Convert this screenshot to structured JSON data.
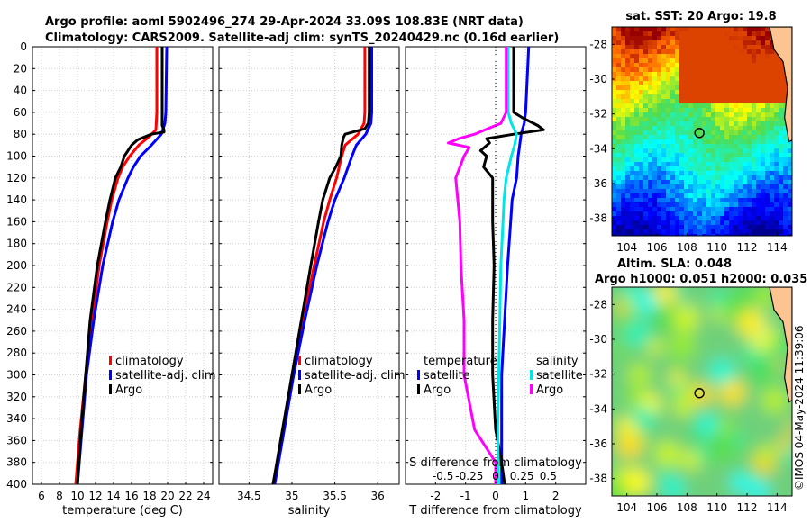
{
  "header": {
    "line1": "Argo profile: aoml 5902496_274 29-Apr-2024 33.09S 108.83E (NRT data)",
    "line2": "Climatology: CARS2009. Satellite-adj clim: synTS_20240429.nc (0.16d earlier)"
  },
  "timestamp": "©IMOS 04-May-2024 11:39:06",
  "depth_ticks": [
    "0",
    "20",
    "40",
    "60",
    "80",
    "100",
    "120",
    "140",
    "160",
    "180",
    "200",
    "220",
    "240",
    "260",
    "280",
    "300",
    "320",
    "340",
    "360",
    "380",
    "400"
  ],
  "colors": {
    "climatology": "#ff0000",
    "satellite": "#0000ff",
    "argo": "#000000",
    "t_sat": "#0000ff",
    "s_sat": "#00e5e5",
    "s_argo": "#ff00ff",
    "t_argo": "#000000"
  },
  "chart_data": [
    {
      "type": "line",
      "name": "temperature-profile",
      "xlabel": "temperature (deg C)",
      "ylabel": "",
      "xlim": [
        5,
        25
      ],
      "ylim": [
        400,
        0
      ],
      "xticks": [
        "6",
        "8",
        "10",
        "12",
        "14",
        "16",
        "18",
        "20",
        "22",
        "24"
      ],
      "xtick_values": [
        6,
        8,
        10,
        12,
        14,
        16,
        18,
        20,
        22,
        24
      ],
      "legend": [
        "climatology",
        "satellite-adj. clim",
        "Argo"
      ],
      "series": [
        {
          "name": "climatology",
          "depth": [
            0,
            60,
            76,
            82,
            90,
            100,
            110,
            120,
            140,
            160,
            200,
            250,
            300,
            350,
            400
          ],
          "values": [
            18.8,
            18.8,
            18.7,
            18.0,
            16.8,
            15.8,
            15.0,
            14.5,
            13.8,
            13.3,
            12.4,
            11.6,
            10.9,
            10.3,
            9.8
          ]
        },
        {
          "name": "satellite-adj. clim",
          "depth": [
            0,
            60,
            70,
            80,
            90,
            100,
            110,
            120,
            140,
            160,
            200,
            250,
            300,
            350,
            400
          ],
          "values": [
            19.9,
            19.8,
            19.7,
            19.3,
            18.2,
            17.0,
            16.2,
            15.6,
            14.6,
            13.9,
            12.8,
            11.8,
            11.0,
            10.5,
            10.0
          ]
        },
        {
          "name": "Argo",
          "depth": [
            0,
            60,
            72,
            76,
            78,
            80,
            85,
            90,
            100,
            110,
            120,
            140,
            160,
            200,
            250,
            300,
            350,
            400
          ],
          "values": [
            19.4,
            19.4,
            19.4,
            19.6,
            19.6,
            18.2,
            16.7,
            16.0,
            15.2,
            14.8,
            14.2,
            13.6,
            13.1,
            12.2,
            11.4,
            10.9,
            10.4,
            10.0
          ]
        }
      ]
    },
    {
      "type": "line",
      "name": "salinity-profile",
      "xlabel": "salinity",
      "ylabel": "",
      "xlim": [
        34.15,
        36.25
      ],
      "ylim": [
        400,
        0
      ],
      "xticks": [
        "34.5",
        "35",
        "35.5",
        "36"
      ],
      "xtick_values": [
        34.5,
        35.0,
        35.5,
        36.0
      ],
      "legend": [
        "climatology",
        "satellite-adj. clim",
        "Argo"
      ],
      "series": [
        {
          "name": "climatology",
          "depth": [
            0,
            60,
            70,
            80,
            90,
            100,
            120,
            140,
            160,
            200,
            250,
            300,
            350,
            400
          ],
          "values": [
            35.85,
            35.85,
            35.84,
            35.77,
            35.62,
            35.58,
            35.52,
            35.44,
            35.37,
            35.26,
            35.13,
            35.01,
            34.9,
            34.78
          ]
        },
        {
          "name": "satellite-adj. clim",
          "depth": [
            0,
            60,
            70,
            80,
            90,
            100,
            120,
            140,
            160,
            200,
            250,
            300,
            350,
            400
          ],
          "values": [
            35.93,
            35.93,
            35.92,
            35.86,
            35.75,
            35.7,
            35.61,
            35.5,
            35.42,
            35.29,
            35.15,
            35.02,
            34.91,
            34.8
          ]
        },
        {
          "name": "Argo",
          "depth": [
            0,
            60,
            70,
            75,
            80,
            83,
            90,
            100,
            110,
            120,
            140,
            160,
            200,
            250,
            300,
            350,
            400
          ],
          "values": [
            35.9,
            35.9,
            35.89,
            35.85,
            35.62,
            35.6,
            35.58,
            35.57,
            35.51,
            35.44,
            35.36,
            35.31,
            35.22,
            35.11,
            35.0,
            34.89,
            34.78
          ]
        }
      ]
    },
    {
      "type": "line",
      "name": "difference-profile",
      "xlabel": "T difference from climatology",
      "xlabel_top": "S difference from climatology",
      "xlim": [
        -3,
        3
      ],
      "ylim": [
        400,
        0
      ],
      "xticks": [
        "-2",
        "-1",
        "0",
        "1",
        "2"
      ],
      "xtick_values": [
        -2,
        -1,
        0,
        1,
        2
      ],
      "sticks": [
        "-0.5",
        "-0.25",
        "0",
        "0.25",
        "0.5"
      ],
      "stick_values": [
        -0.5,
        -0.25,
        0,
        0.25,
        0.5
      ],
      "legend_left_title": "temperature",
      "legend_right_title": "salinity",
      "legend_labels": [
        "satellite",
        "Argo"
      ],
      "series": [
        {
          "name": "temperature-satellite",
          "depth": [
            0,
            60,
            70,
            80,
            90,
            100,
            120,
            140,
            160,
            200,
            250,
            300,
            350,
            400
          ],
          "values": [
            1.1,
            1.0,
            0.95,
            0.85,
            0.8,
            0.75,
            0.7,
            0.55,
            0.5,
            0.4,
            0.3,
            0.2,
            0.2,
            0.2
          ]
        },
        {
          "name": "temperature-Argo",
          "depth": [
            0,
            60,
            65,
            72,
            76,
            80,
            84,
            88,
            95,
            100,
            110,
            120,
            140,
            160,
            200,
            250,
            300,
            350,
            380,
            400
          ],
          "values": [
            0.6,
            0.6,
            0.9,
            1.4,
            1.6,
            0.6,
            -0.3,
            -0.2,
            -0.5,
            -0.3,
            -0.4,
            -0.1,
            -0.1,
            -0.1,
            -0.05,
            -0.1,
            -0.1,
            0.0,
            0.2,
            0.3
          ]
        },
        {
          "name": "salinity-satellite",
          "depth": [
            0,
            60,
            70,
            80,
            90,
            100,
            120,
            140,
            160,
            200,
            250,
            300,
            350,
            400
          ],
          "values": [
            0.12,
            0.12,
            0.15,
            0.2,
            0.18,
            0.15,
            0.1,
            0.08,
            0.07,
            0.05,
            0.04,
            0.03,
            0.02,
            0.03
          ]
        },
        {
          "name": "salinity-Argo",
          "depth": [
            0,
            60,
            70,
            76,
            80,
            84,
            88,
            92,
            100,
            120,
            140,
            160,
            200,
            250,
            300,
            350,
            380,
            400
          ],
          "values": [
            0.1,
            0.1,
            0.05,
            -0.1,
            -0.2,
            -0.35,
            -0.45,
            -0.25,
            -0.3,
            -0.38,
            -0.36,
            -0.34,
            -0.33,
            -0.3,
            -0.3,
            -0.2,
            0.0,
            0.0
          ]
        }
      ]
    },
    {
      "type": "heatmap",
      "name": "sst-map",
      "title": "sat. SST: 20 Argo: 19.8",
      "xlim": [
        103,
        115
      ],
      "ylim": [
        -39,
        -27
      ],
      "xticks": [
        "104",
        "106",
        "108",
        "110",
        "112",
        "114"
      ],
      "xtick_values": [
        104,
        106,
        108,
        110,
        112,
        114
      ],
      "yticks": [
        "-28",
        "-30",
        "-32",
        "-34",
        "-36",
        "-38"
      ],
      "ytick_values": [
        -28,
        -30,
        -32,
        -34,
        -36,
        -38
      ],
      "argo_position": [
        108.83,
        -33.09
      ]
    },
    {
      "type": "heatmap",
      "name": "sla-map",
      "title": "Altim. SLA: 0.048",
      "subtitle": "Argo h1000: 0.051 h2000: 0.035",
      "xlim": [
        103,
        115
      ],
      "ylim": [
        -39,
        -27
      ],
      "xticks": [
        "104",
        "106",
        "108",
        "110",
        "112",
        "114"
      ],
      "xtick_values": [
        104,
        106,
        108,
        110,
        112,
        114
      ],
      "yticks": [
        "-28",
        "-30",
        "-32",
        "-34",
        "-36",
        "-38"
      ],
      "ytick_values": [
        -28,
        -30,
        -32,
        -34,
        -36,
        -38
      ],
      "argo_position": [
        108.83,
        -33.09
      ]
    }
  ]
}
